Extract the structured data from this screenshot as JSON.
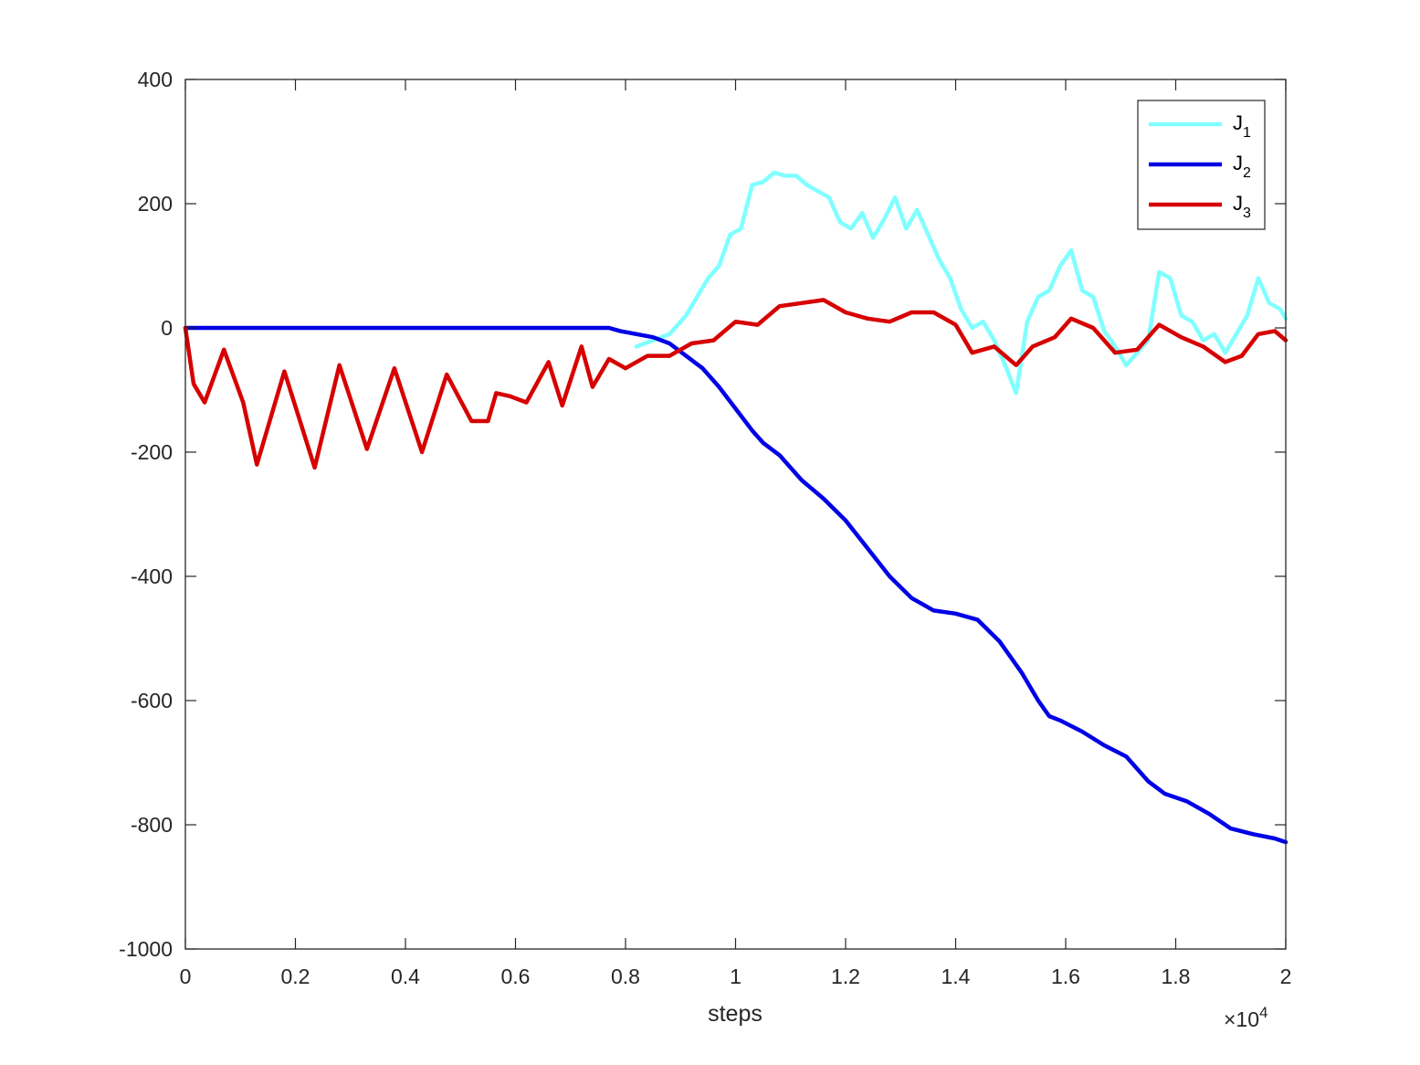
{
  "chart_data": {
    "type": "line",
    "xlabel": "steps",
    "ylabel": "",
    "title": "",
    "x_exponent_label": "×10",
    "x_exponent_power": "4",
    "xlim": [
      0,
      20000
    ],
    "ylim": [
      -1000,
      400
    ],
    "xticks": [
      0,
      2000,
      4000,
      6000,
      8000,
      10000,
      12000,
      14000,
      16000,
      18000,
      20000
    ],
    "xtick_labels": [
      "0",
      "0.2",
      "0.4",
      "0.6",
      "0.8",
      "1",
      "1.2",
      "1.4",
      "1.6",
      "1.8",
      "2"
    ],
    "yticks": [
      -1000,
      -800,
      -600,
      -400,
      -200,
      0,
      200,
      400
    ],
    "ytick_labels": [
      "-1000",
      "-800",
      "-600",
      "-400",
      "-200",
      "0",
      "200",
      "400"
    ],
    "grid": false,
    "legend_position": "top-right",
    "series": [
      {
        "name": "J",
        "subscript": "1",
        "color": "#80ffff",
        "x": [
          8200,
          8500,
          8800,
          9100,
          9300,
          9500,
          9700,
          9900,
          10100,
          10300,
          10500,
          10700,
          10900,
          11100,
          11300,
          11500,
          11700,
          11900,
          12100,
          12300,
          12500,
          12700,
          12900,
          13100,
          13300,
          13500,
          13700,
          13900,
          14100,
          14300,
          14500,
          14700,
          14900,
          15100,
          15300,
          15500,
          15700,
          15900,
          16100,
          16300,
          16500,
          16700,
          16900,
          17100,
          17300,
          17500,
          17700,
          17900,
          18100,
          18300,
          18500,
          18700,
          18900,
          19100,
          19300,
          19500,
          19700,
          19900,
          20000
        ],
        "y": [
          -30,
          -20,
          -10,
          20,
          50,
          80,
          100,
          150,
          160,
          230,
          235,
          250,
          245,
          245,
          230,
          220,
          210,
          170,
          160,
          185,
          145,
          175,
          210,
          160,
          190,
          150,
          110,
          80,
          30,
          0,
          10,
          -20,
          -60,
          -105,
          10,
          50,
          60,
          100,
          125,
          60,
          50,
          -5,
          -30,
          -60,
          -40,
          -20,
          90,
          80,
          20,
          10,
          -20,
          -10,
          -40,
          -10,
          20,
          80,
          40,
          30,
          15
        ]
      },
      {
        "name": "J",
        "subscript": "2",
        "color": "#0000e6",
        "x": [
          0,
          7700,
          7900,
          8200,
          8500,
          8800,
          9100,
          9400,
          9700,
          10000,
          10300,
          10500,
          10800,
          11200,
          11600,
          12000,
          12400,
          12800,
          13200,
          13600,
          14000,
          14400,
          14800,
          15200,
          15500,
          15700,
          15900,
          16300,
          16700,
          17100,
          17500,
          17800,
          18200,
          18600,
          19000,
          19400,
          19800,
          20000
        ],
        "y": [
          0,
          0,
          -5,
          -10,
          -15,
          -25,
          -45,
          -65,
          -95,
          -130,
          -165,
          -185,
          -205,
          -245,
          -275,
          -310,
          -355,
          -400,
          -435,
          -455,
          -460,
          -470,
          -505,
          -555,
          -600,
          -625,
          -632,
          -650,
          -672,
          -690,
          -730,
          -750,
          -762,
          -782,
          -806,
          -815,
          -822,
          -828
        ]
      },
      {
        "name": "J",
        "subscript": "3",
        "color": "#d60000",
        "x": [
          0,
          150,
          350,
          700,
          1050,
          1300,
          1800,
          2350,
          2800,
          3300,
          3800,
          4300,
          4750,
          5200,
          5500,
          5650,
          5900,
          6200,
          6600,
          6850,
          7200,
          7400,
          7700,
          8000,
          8400,
          8800,
          9200,
          9600,
          10000,
          10400,
          10800,
          11200,
          11600,
          12000,
          12400,
          12800,
          13200,
          13600,
          14000,
          14300,
          14700,
          15100,
          15400,
          15800,
          16100,
          16500,
          16900,
          17300,
          17700,
          18100,
          18500,
          18900,
          19200,
          19500,
          19800,
          20000
        ],
        "y": [
          0,
          -90,
          -120,
          -35,
          -120,
          -220,
          -70,
          -225,
          -60,
          -195,
          -65,
          -200,
          -75,
          -150,
          -150,
          -105,
          -110,
          -120,
          -55,
          -125,
          -30,
          -95,
          -50,
          -65,
          -45,
          -45,
          -25,
          -20,
          10,
          5,
          35,
          40,
          45,
          25,
          15,
          10,
          25,
          25,
          5,
          -40,
          -30,
          -60,
          -30,
          -15,
          15,
          0,
          -40,
          -35,
          5,
          -15,
          -30,
          -55,
          -45,
          -10,
          -5,
          -20
        ]
      }
    ]
  }
}
